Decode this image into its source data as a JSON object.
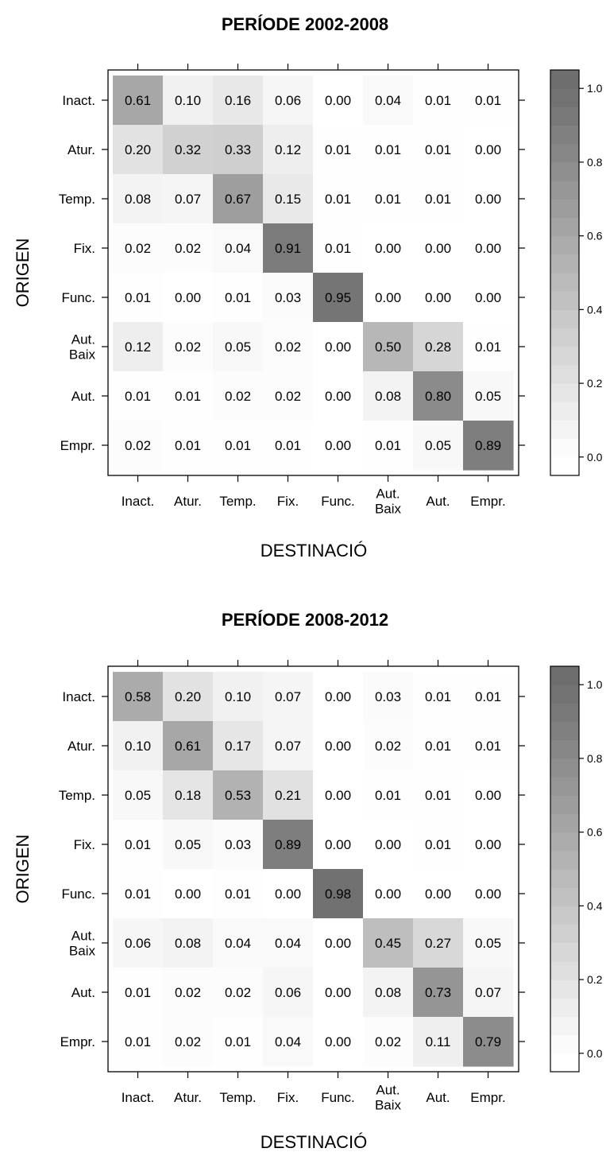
{
  "chart_data": [
    {
      "type": "heatmap",
      "title": "PERÍODE 2002-2008",
      "xlabel": "DESTINACIÓ",
      "ylabel": "ORIGEN",
      "x_categories": [
        "Inact.",
        "Atur.",
        "Temp.",
        "Fix.",
        "Func.",
        "Aut.\nBaix",
        "Aut.",
        "Empr."
      ],
      "y_categories": [
        "Inact.",
        "Atur.",
        "Temp.",
        "Fix.",
        "Func.",
        "Aut.\nBaix",
        "Aut.",
        "Empr."
      ],
      "values": [
        [
          0.61,
          0.1,
          0.16,
          0.06,
          0.0,
          0.04,
          0.01,
          0.01
        ],
        [
          0.2,
          0.32,
          0.33,
          0.12,
          0.01,
          0.01,
          0.01,
          0.0
        ],
        [
          0.08,
          0.07,
          0.67,
          0.15,
          0.01,
          0.01,
          0.01,
          0.0
        ],
        [
          0.02,
          0.02,
          0.04,
          0.91,
          0.01,
          0.0,
          0.0,
          0.0
        ],
        [
          0.01,
          0.0,
          0.01,
          0.03,
          0.95,
          0.0,
          0.0,
          0.0
        ],
        [
          0.12,
          0.02,
          0.05,
          0.02,
          0.0,
          0.5,
          0.28,
          0.01
        ],
        [
          0.01,
          0.01,
          0.02,
          0.02,
          0.0,
          0.08,
          0.8,
          0.05
        ],
        [
          0.02,
          0.01,
          0.01,
          0.01,
          0.0,
          0.01,
          0.05,
          0.89
        ]
      ],
      "colorbar": {
        "range": [
          -0.05,
          1.05
        ],
        "ticks": [
          "0.0",
          "0.2",
          "0.4",
          "0.6",
          "0.8",
          "1.0"
        ],
        "tick_values": [
          0,
          0.2,
          0.4,
          0.6,
          0.8,
          1.0
        ]
      },
      "colors": {
        "low": "#ffffff",
        "high": "#6e6e6e"
      }
    },
    {
      "type": "heatmap",
      "title": "PERÍODE 2008-2012",
      "xlabel": "DESTINACIÓ",
      "ylabel": "ORIGEN",
      "x_categories": [
        "Inact.",
        "Atur.",
        "Temp.",
        "Fix.",
        "Func.",
        "Aut.\nBaix",
        "Aut.",
        "Empr."
      ],
      "y_categories": [
        "Inact.",
        "Atur.",
        "Temp.",
        "Fix.",
        "Func.",
        "Aut.\nBaix",
        "Aut.",
        "Empr."
      ],
      "values": [
        [
          0.58,
          0.2,
          0.1,
          0.07,
          0.0,
          0.03,
          0.01,
          0.01
        ],
        [
          0.1,
          0.61,
          0.17,
          0.07,
          0.0,
          0.02,
          0.01,
          0.01
        ],
        [
          0.05,
          0.18,
          0.53,
          0.21,
          0.0,
          0.01,
          0.01,
          0.0
        ],
        [
          0.01,
          0.05,
          0.03,
          0.89,
          0.0,
          0.0,
          0.01,
          0.0
        ],
        [
          0.01,
          0.0,
          0.01,
          0.0,
          0.98,
          0.0,
          0.0,
          0.0
        ],
        [
          0.06,
          0.08,
          0.04,
          0.04,
          0.0,
          0.45,
          0.27,
          0.05
        ],
        [
          0.01,
          0.02,
          0.02,
          0.06,
          0.0,
          0.08,
          0.73,
          0.07
        ],
        [
          0.01,
          0.02,
          0.01,
          0.04,
          0.0,
          0.02,
          0.11,
          0.79
        ]
      ],
      "colorbar": {
        "range": [
          -0.05,
          1.05
        ],
        "ticks": [
          "0.0",
          "0.2",
          "0.4",
          "0.6",
          "0.8",
          "1.0"
        ],
        "tick_values": [
          0,
          0.2,
          0.4,
          0.6,
          0.8,
          1.0
        ]
      },
      "colors": {
        "low": "#ffffff",
        "high": "#6e6e6e"
      }
    }
  ]
}
